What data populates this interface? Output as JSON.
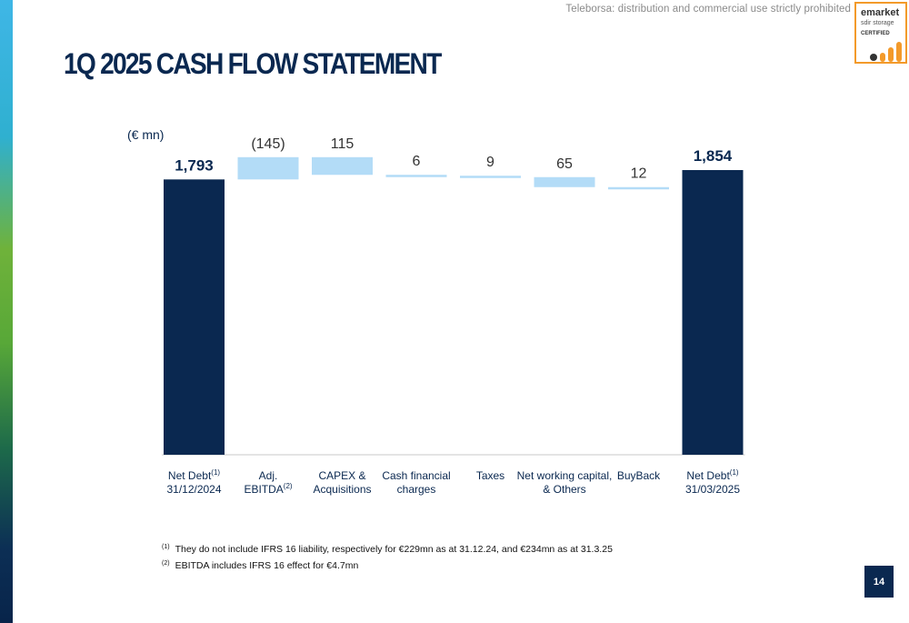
{
  "watermark": "Teleborsa: distribution and commercial use strictly prohibited",
  "logo": {
    "line1": "emarket",
    "line2": "sdir storage",
    "line3": "CERTIFIED"
  },
  "title": "1Q 2025 CASH FLOW STATEMENT",
  "unit_label": "(€ mn)",
  "colors": {
    "total": "#0a2850",
    "step": "#b3dcf7",
    "label": "#0a2850",
    "step_label": "#333333"
  },
  "chart_data": {
    "type": "bar",
    "subtype": "waterfall",
    "categories": [
      {
        "label": "Net Debt",
        "sup": "(1)",
        "line2": "31/12/2024"
      },
      {
        "label": "Adj.",
        "sup": "",
        "line2": "EBITDA",
        "sup2": "(2)"
      },
      {
        "label": "CAPEX &",
        "sup": "",
        "line2": "Acquisitions"
      },
      {
        "label": "Cash financial",
        "sup": "",
        "line2": "charges"
      },
      {
        "label": "Taxes",
        "sup": "",
        "line2": ""
      },
      {
        "label": "Net working capital,",
        "sup": "",
        "line2": "& Others"
      },
      {
        "label": "BuyBack",
        "sup": "",
        "line2": ""
      },
      {
        "label": "Net Debt",
        "sup": "(1)",
        "line2": "31/03/2025"
      }
    ],
    "values": [
      1793,
      -145,
      115,
      6,
      9,
      65,
      12,
      1854
    ],
    "kinds": [
      "total",
      "step",
      "step",
      "step",
      "step",
      "step",
      "step",
      "total"
    ],
    "data_labels": [
      "1,793",
      "(145)",
      "115",
      "6",
      "9",
      "65",
      "12",
      "1,854"
    ],
    "ylim": [
      0,
      1900
    ],
    "grid": false,
    "legend": "none"
  },
  "footnotes": [
    {
      "sup": "(1)",
      "text": "They do not include IFRS 16 liability, respectively for €229mn as at 31.12.24, and €234mn as at 31.3.25"
    },
    {
      "sup": "(2)",
      "text": "EBITDA includes IFRS 16 effect for €4.7mn"
    }
  ],
  "page_number": "14"
}
